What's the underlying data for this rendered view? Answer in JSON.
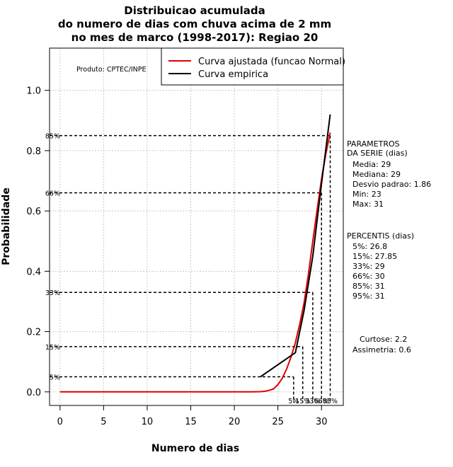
{
  "chart_data": {
    "type": "line",
    "title": [
      "Distribuicao acumulada",
      "do numero de dias com chuva acima de 2 mm",
      "no mes de marco (1998-2017): Regiao 20"
    ],
    "xlabel": "Numero de dias",
    "ylabel": "Probabilidade",
    "xlim": [
      -1.2,
      32.5
    ],
    "ylim": [
      -0.045,
      1.14
    ],
    "x_ticks": [
      0,
      5,
      10,
      15,
      20,
      25,
      30
    ],
    "x_tick_labels": [
      "0",
      "5",
      "10",
      "15",
      "20",
      "25",
      "30"
    ],
    "y_ticks": [
      0.0,
      0.2,
      0.4,
      0.6,
      0.8,
      1.0
    ],
    "y_tick_labels": [
      "0.0",
      "0.2",
      "0.4",
      "0.6",
      "0.8",
      "1.0"
    ],
    "grid": true,
    "legend_position": "top-right",
    "product_label": "Produto: CPTEC/INPE",
    "series": [
      {
        "name": "Curva ajustada (funcao Normal)",
        "color": "#e00000",
        "x": [
          0,
          22,
          23,
          23.5,
          24,
          24.5,
          25,
          25.5,
          26,
          26.5,
          27,
          27.5,
          28,
          28.5,
          29,
          29.5,
          30,
          30.5,
          31
        ],
        "y": [
          0,
          0,
          0.0007,
          0.002,
          0.005,
          0.01,
          0.024,
          0.045,
          0.076,
          0.115,
          0.163,
          0.224,
          0.295,
          0.39,
          0.5,
          0.605,
          0.705,
          0.79,
          0.86
        ]
      },
      {
        "name": "Curva empirica",
        "color": "#000000",
        "x": [
          23,
          27,
          28,
          29,
          30,
          31
        ],
        "y": [
          0.05,
          0.13,
          0.27,
          0.45,
          0.69,
          0.92
        ]
      }
    ],
    "percentile_lines": [
      {
        "label": "5%",
        "p": 0.05,
        "x": 26.8
      },
      {
        "label": "15%",
        "p": 0.15,
        "x": 27.85
      },
      {
        "label": "33%",
        "p": 0.33,
        "x": 29
      },
      {
        "label": "66%",
        "p": 0.66,
        "x": 30
      },
      {
        "label": "85%",
        "p": 0.85,
        "x": 31
      }
    ],
    "bottom_labels": [
      "5%",
      "15%",
      "33%",
      "66%",
      "85%"
    ],
    "left_labels": [
      "5%",
      "15%",
      "33%",
      "66%",
      "85%"
    ],
    "parametros": {
      "title": [
        "PARAMETROS",
        "DA SERIE (dias)"
      ],
      "lines": [
        "Media: 29",
        "Mediana: 29",
        "Desvio padrao: 1.86",
        "Min: 23",
        "Max: 31"
      ]
    },
    "percentis": {
      "title": "PERCENTIS (dias)",
      "lines": [
        "5%: 26.8",
        "15%: 27.85",
        "33%: 29",
        "66%: 30",
        "85%: 31",
        "95%: 31"
      ]
    },
    "stats": [
      "Curtose: 2.2",
      "Assimetria: 0.6"
    ]
  }
}
